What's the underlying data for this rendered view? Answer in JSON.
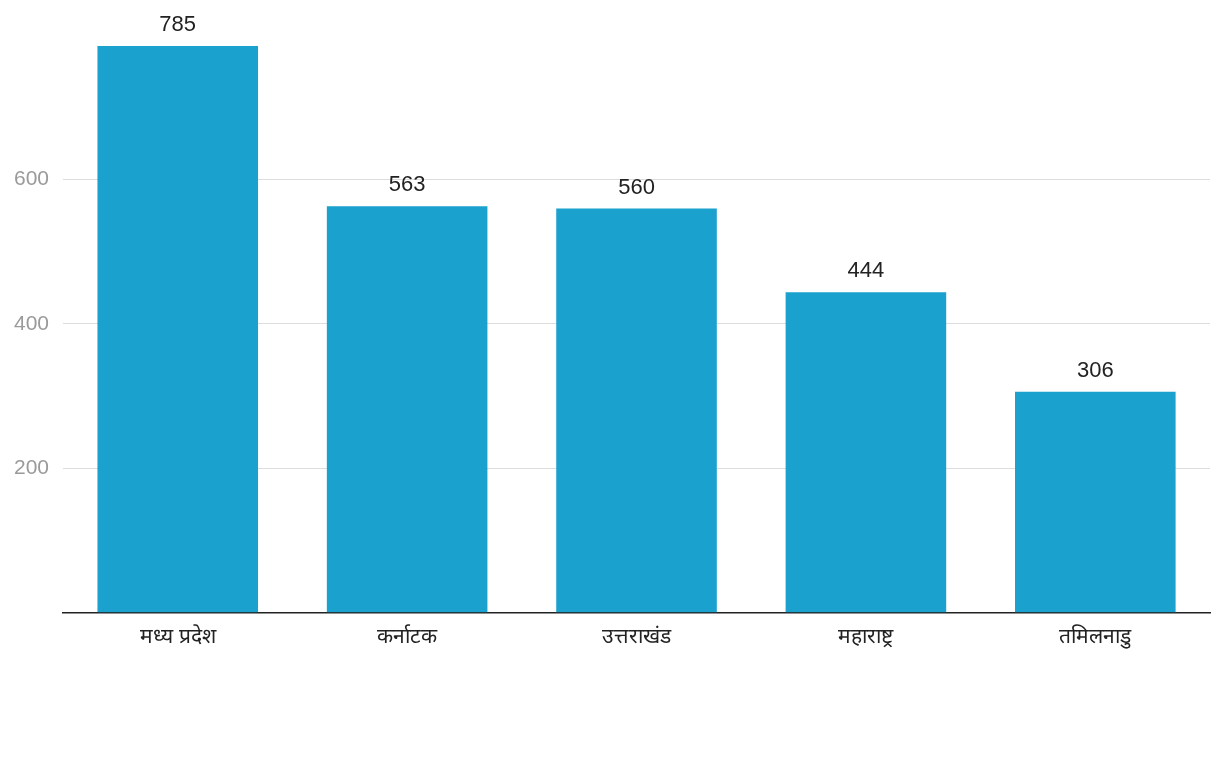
{
  "chart_data": {
    "type": "bar",
    "categories": [
      "मध्य प्रदेश",
      "कर्नाटक",
      "उत्तराखंड",
      "महाराष्ट्र",
      "तमिलनाडु"
    ],
    "values": [
      785,
      563,
      560,
      444,
      306
    ],
    "color": "#1aa1cd",
    "ylim": [
      0,
      785
    ],
    "yticks": [
      {
        "value": 0,
        "label": null
      },
      200,
      400,
      600
    ],
    "grid": "y",
    "data_labels": true,
    "legend": false
  }
}
